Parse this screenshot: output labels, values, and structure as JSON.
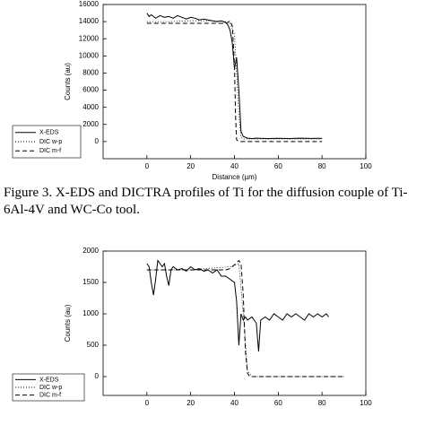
{
  "chart_data": [
    {
      "type": "line",
      "x_label": "Distance (µm)",
      "y_label": "Counts (au)",
      "xlim": [
        -20,
        100
      ],
      "xticks": [
        0,
        20,
        40,
        60,
        80,
        100
      ],
      "ylim": [
        -2000,
        16000
      ],
      "yticks": [
        0,
        2000,
        4000,
        6000,
        8000,
        10000,
        12000,
        14000,
        16000
      ],
      "legend": "left",
      "series": [
        {
          "name": "X-EDS",
          "color": "#000000",
          "style": "solid",
          "x": [
            0,
            1,
            2,
            4,
            6,
            8,
            10,
            12,
            14,
            16,
            18,
            20,
            22,
            24,
            26,
            28,
            30,
            32,
            34,
            36,
            37,
            38,
            39,
            40,
            41,
            42,
            43,
            44,
            45,
            46,
            48,
            50,
            55,
            60,
            65,
            70,
            75,
            80
          ],
          "values": [
            15000,
            14600,
            14800,
            14400,
            14700,
            14500,
            14600,
            14400,
            14700,
            14500,
            14300,
            14500,
            14400,
            14200,
            14300,
            14200,
            14100,
            14000,
            14100,
            13900,
            13600,
            13000,
            11500,
            8500,
            9800,
            6000,
            1200,
            600,
            500,
            400,
            350,
            400,
            350,
            380,
            350,
            400,
            370,
            380
          ]
        },
        {
          "name": "DIC w-p",
          "color": "#000000",
          "style": "dotted",
          "x": [
            0,
            10,
            20,
            30,
            36,
            38,
            40,
            41,
            42,
            43,
            44,
            80
          ],
          "values": [
            14000,
            14000,
            14100,
            14100,
            14000,
            13800,
            12500,
            8000,
            3000,
            500,
            300,
            300
          ]
        },
        {
          "name": "DIC m-f",
          "color": "#000000",
          "style": "dashed",
          "x": [
            0,
            10,
            20,
            30,
            35,
            37,
            38,
            39,
            40,
            40.5,
            41,
            42,
            50,
            60,
            70,
            80
          ],
          "values": [
            13800,
            13800,
            13800,
            13800,
            13800,
            13900,
            14100,
            13500,
            9000,
            3000,
            200,
            0,
            0,
            0,
            0,
            0
          ]
        }
      ]
    },
    {
      "type": "line",
      "y_label": "Counts (au)",
      "xlim": [
        -20,
        100
      ],
      "xticks": [
        0,
        20,
        40,
        60,
        80,
        100
      ],
      "ylim": [
        -300,
        2000
      ],
      "yticks": [
        0,
        500,
        1000,
        1500,
        2000
      ],
      "legend": "left",
      "series": [
        {
          "name": "X-EDS",
          "color": "#000000",
          "style": "solid",
          "x": [
            0,
            1,
            2,
            3,
            4,
            5,
            6,
            7,
            8,
            9,
            10,
            11,
            12,
            14,
            16,
            18,
            20,
            22,
            24,
            26,
            28,
            30,
            32,
            34,
            36,
            38,
            40,
            41,
            42,
            43,
            44,
            45,
            46,
            48,
            50,
            51,
            52,
            54,
            56,
            58,
            60,
            62,
            64,
            66,
            68,
            70,
            72,
            74,
            76,
            78,
            80,
            82,
            83
          ],
          "values": [
            1800,
            1750,
            1500,
            1300,
            1550,
            1850,
            1800,
            1750,
            1800,
            1600,
            1450,
            1700,
            1750,
            1700,
            1720,
            1680,
            1750,
            1700,
            1720,
            1680,
            1700,
            1650,
            1700,
            1600,
            1600,
            1550,
            1500,
            1200,
            500,
            1000,
            900,
            950,
            900,
            950,
            850,
            400,
            900,
            950,
            900,
            1000,
            950,
            900,
            1000,
            950,
            1000,
            950,
            900,
            1000,
            950,
            1000,
            950,
            1000,
            950
          ]
        },
        {
          "name": "DIC w-p",
          "color": "#000000",
          "style": "dotted",
          "x": [
            0,
            20,
            38,
            42,
            44,
            46,
            48,
            90
          ],
          "values": [
            1700,
            1700,
            1750,
            1800,
            1000,
            100,
            0,
            0
          ]
        },
        {
          "name": "DIC m-f",
          "color": "#000000",
          "style": "dashed",
          "x": [
            0,
            10,
            20,
            30,
            36,
            38,
            40,
            42,
            43,
            44,
            45,
            46,
            47,
            50,
            60,
            70,
            80,
            90
          ],
          "values": [
            1700,
            1700,
            1700,
            1700,
            1700,
            1720,
            1780,
            1850,
            1800,
            1300,
            400,
            50,
            0,
            0,
            0,
            0,
            0,
            0
          ]
        }
      ]
    }
  ],
  "caption": "Figure 3. X-EDS and DICTRA profiles of Ti for the diffusion couple of Ti-6Al-4V and WC-Co tool."
}
